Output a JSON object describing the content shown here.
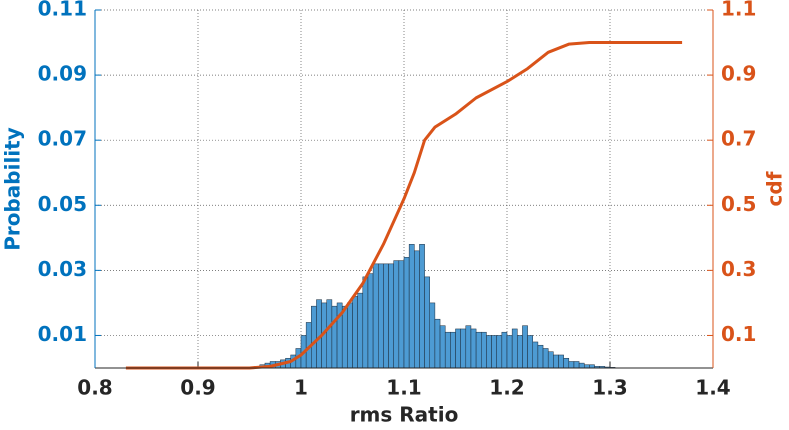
{
  "chart_data": {
    "type": "histogram",
    "xlabel": "rms Ratio",
    "ylabel": "Probability",
    "y2label": "cdf",
    "bins": [
      0.955,
      0.96,
      0.965,
      0.97,
      0.975,
      0.98,
      0.985,
      0.99,
      0.995,
      1.0,
      1.005,
      1.01,
      1.015,
      1.02,
      1.025,
      1.03,
      1.035,
      1.04,
      1.045,
      1.05,
      1.055,
      1.06,
      1.065,
      1.07,
      1.075,
      1.08,
      1.085,
      1.09,
      1.095,
      1.1,
      1.105,
      1.11,
      1.115,
      1.12,
      1.125,
      1.13,
      1.135,
      1.14,
      1.145,
      1.15,
      1.155,
      1.16,
      1.165,
      1.17,
      1.175,
      1.18,
      1.185,
      1.19,
      1.195,
      1.2,
      1.205,
      1.21,
      1.215,
      1.22,
      1.225,
      1.23,
      1.235,
      1.24,
      1.245,
      1.25,
      1.255,
      1.26,
      1.265,
      1.27,
      1.275,
      1.28,
      1.285,
      1.29,
      1.295,
      1.3,
      1.305
    ],
    "values": [
      0.0005,
      0.001,
      0.0015,
      0.002,
      0.002,
      0.0025,
      0.003,
      0.004,
      0.006,
      0.01,
      0.014,
      0.019,
      0.021,
      0.02,
      0.021,
      0.019,
      0.02,
      0.019,
      0.02,
      0.022,
      0.023,
      0.028,
      0.029,
      0.032,
      0.032,
      0.032,
      0.032,
      0.033,
      0.033,
      0.034,
      0.038,
      0.036,
      0.038,
      0.028,
      0.02,
      0.015,
      0.013,
      0.011,
      0.011,
      0.012,
      0.012,
      0.013,
      0.012,
      0.011,
      0.011,
      0.01,
      0.01,
      0.01,
      0.011,
      0.01,
      0.012,
      0.01,
      0.013,
      0.01,
      0.008,
      0.007,
      0.006,
      0.005,
      0.004,
      0.004,
      0.003,
      0.002,
      0.002,
      0.0015,
      0.001,
      0.001,
      0.0005,
      0.0005,
      0.0003,
      0.0002
    ],
    "color": "#4d9bd3",
    "edgecolor": "#1a2a3a",
    "overlay": {
      "type": "line",
      "axis": "y2",
      "color": "#d95319",
      "x": [
        0.83,
        0.95,
        0.97,
        0.99,
        1.0,
        1.02,
        1.04,
        1.06,
        1.08,
        1.1,
        1.11,
        1.12,
        1.13,
        1.15,
        1.17,
        1.2,
        1.22,
        1.24,
        1.26,
        1.28,
        1.37
      ],
      "values": [
        0,
        0,
        0.005,
        0.02,
        0.04,
        0.1,
        0.17,
        0.26,
        0.38,
        0.52,
        0.6,
        0.7,
        0.74,
        0.78,
        0.83,
        0.88,
        0.92,
        0.97,
        0.995,
        1.0,
        1.0
      ]
    },
    "xlim": [
      0.8,
      1.4
    ],
    "xticks": [
      0.8,
      0.9,
      1,
      1.1,
      1.2,
      1.3,
      1.4
    ],
    "ylim": [
      0,
      0.11
    ],
    "yticks": [
      0.01,
      0.03,
      0.05,
      0.07,
      0.09,
      0.11
    ],
    "y2lim": [
      0,
      1.1
    ],
    "y2ticks": [
      0.1,
      0.3,
      0.5,
      0.7,
      0.9,
      1.1
    ],
    "ycolor": "#0072bd",
    "y2color": "#d95319",
    "grid": true
  }
}
